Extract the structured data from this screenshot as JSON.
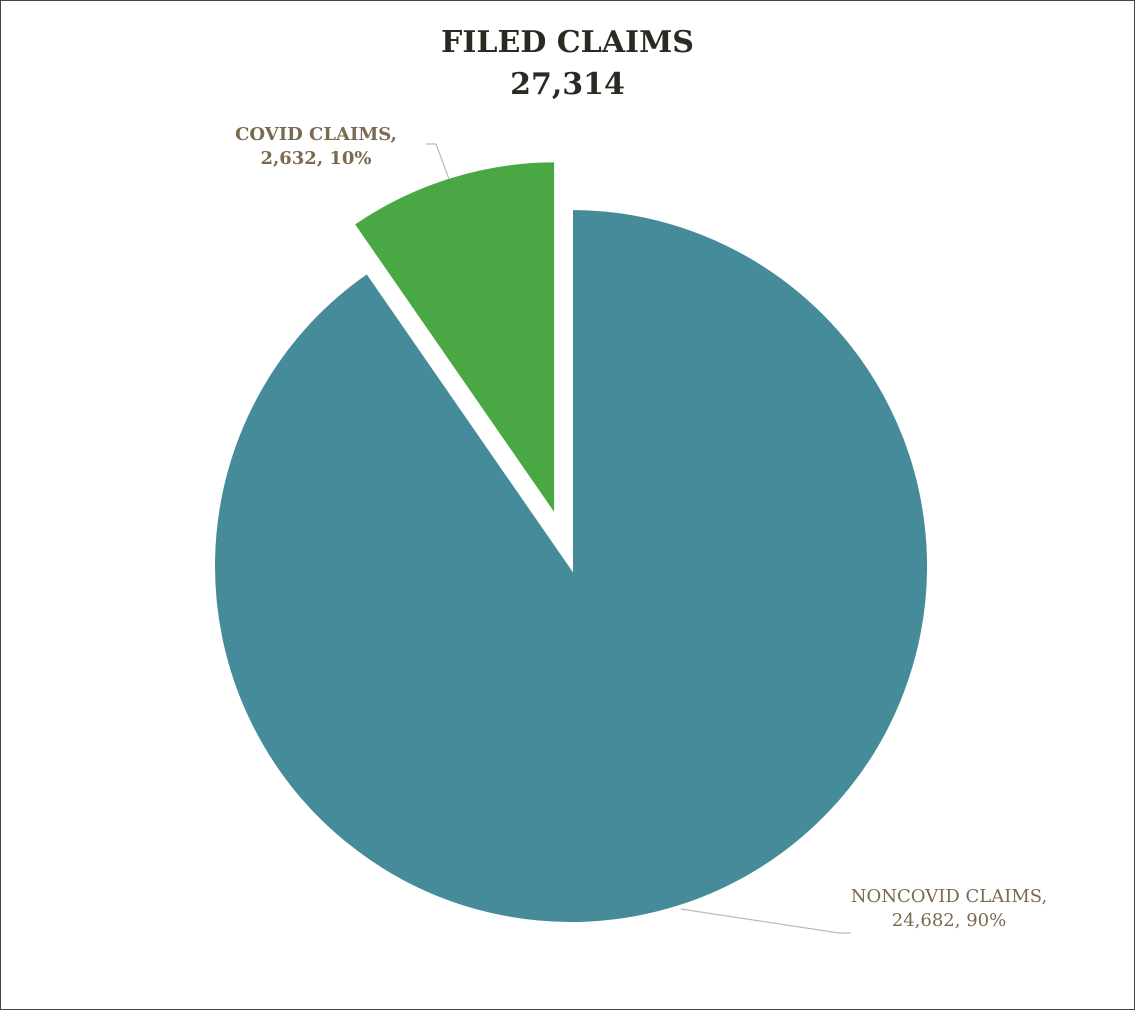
{
  "chart_data": {
    "type": "pie",
    "title": "FILED CLAIMS",
    "subtitle": "27,314",
    "categories": [
      "COVID CLAIMS",
      "NONCOVID CLAIMS"
    ],
    "values": [
      2632,
      24682
    ],
    "value_labels": [
      "COVID CLAIMS, 2,632, 10%",
      "NONCOVID CLAIMS, 24,682, 90%"
    ],
    "colors": [
      "#4aa844",
      "#458b99"
    ]
  }
}
